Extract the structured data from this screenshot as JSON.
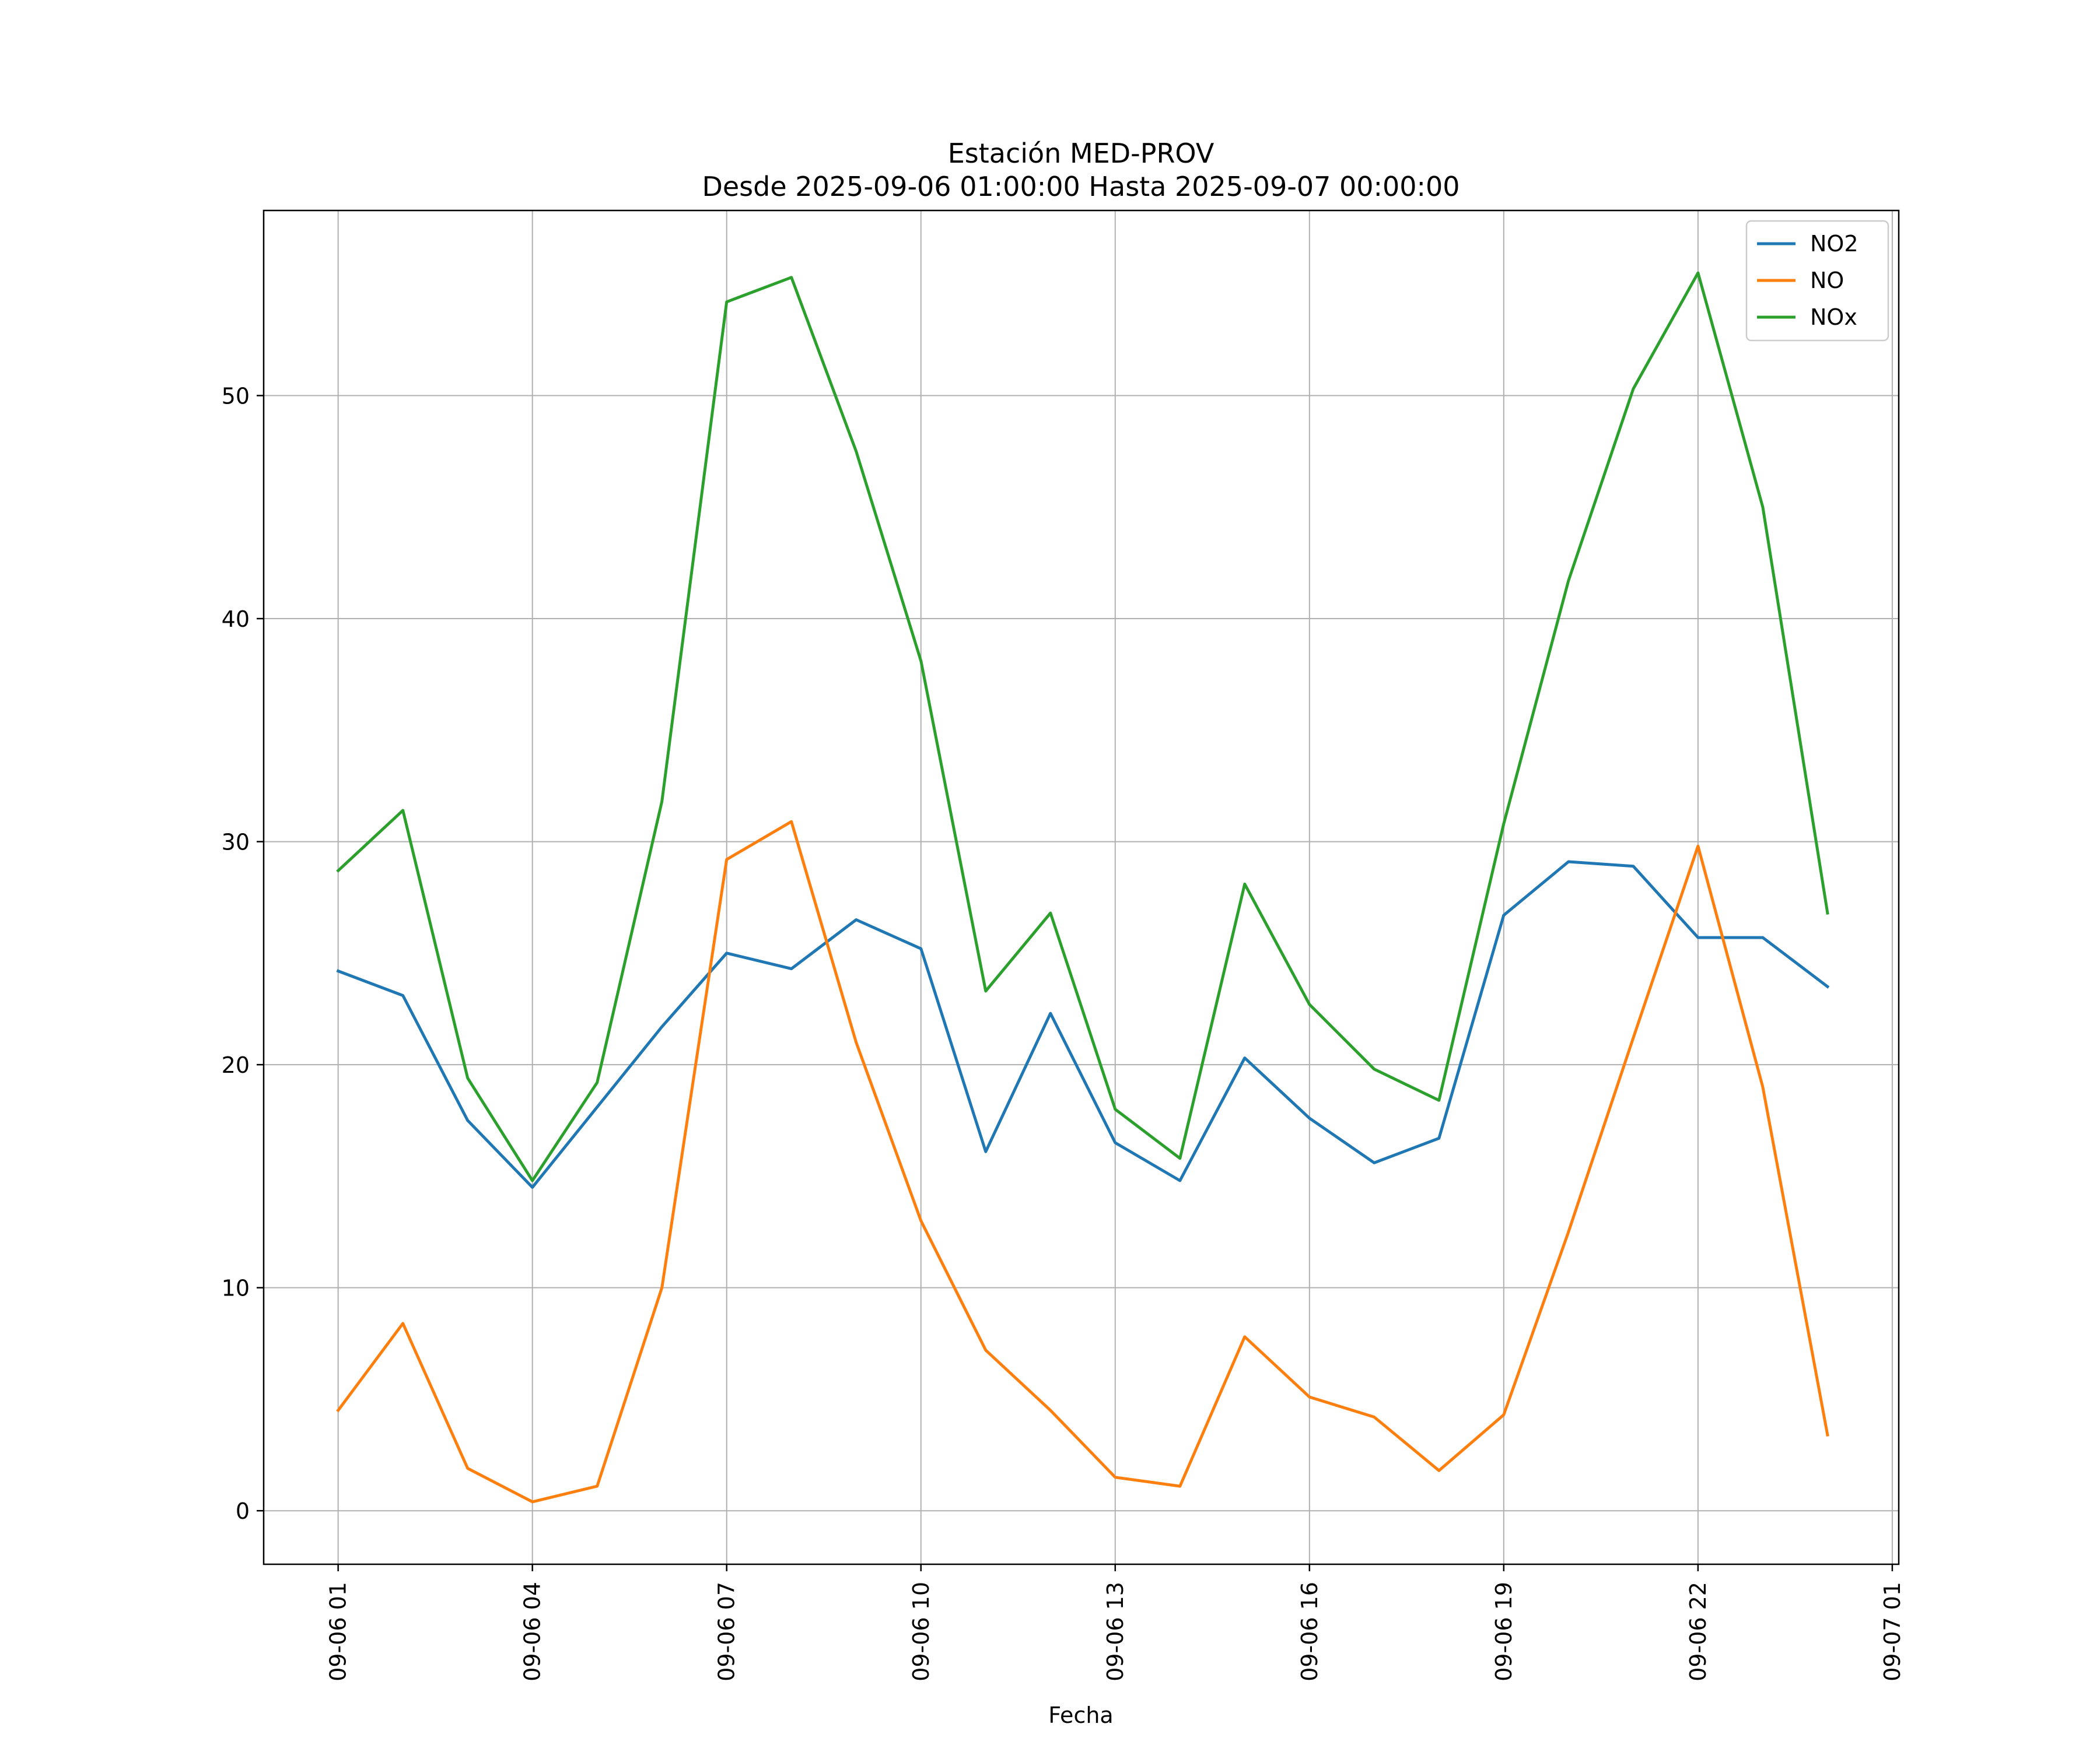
{
  "chart_data": {
    "type": "line",
    "title": "Estación MED-PROV",
    "subtitle": "Desde 2025-09-06 01:00:00 Hasta 2025-09-07 00:00:00",
    "xlabel": "Fecha",
    "ylabel": "",
    "x": [
      "09-06 01",
      "09-06 02",
      "09-06 03",
      "09-06 04",
      "09-06 05",
      "09-06 06",
      "09-06 07",
      "09-06 08",
      "09-06 09",
      "09-06 10",
      "09-06 11",
      "09-06 12",
      "09-06 13",
      "09-06 14",
      "09-06 15",
      "09-06 16",
      "09-06 17",
      "09-06 18",
      "09-06 19",
      "09-06 20",
      "09-06 21",
      "09-06 22",
      "09-06 23",
      "09-07 00"
    ],
    "x_hours": [
      1,
      2,
      3,
      4,
      5,
      6,
      7,
      8,
      9,
      10,
      11,
      12,
      13,
      14,
      15,
      16,
      17,
      18,
      19,
      20,
      21,
      22,
      23,
      24
    ],
    "xlim_hours": [
      -0.15,
      25.1
    ],
    "ylim": [
      -2.4,
      58.3
    ],
    "x_ticks": [
      {
        "label": "09-06 01",
        "hour": 1
      },
      {
        "label": "09-06 04",
        "hour": 4
      },
      {
        "label": "09-06 07",
        "hour": 7
      },
      {
        "label": "09-06 10",
        "hour": 10
      },
      {
        "label": "09-06 13",
        "hour": 13
      },
      {
        "label": "09-06 16",
        "hour": 16
      },
      {
        "label": "09-06 19",
        "hour": 19
      },
      {
        "label": "09-06 22",
        "hour": 22
      },
      {
        "label": "09-07 01",
        "hour": 25
      }
    ],
    "y_ticks": [
      0,
      10,
      20,
      30,
      40,
      50
    ],
    "grid": true,
    "legend_position": "top-right",
    "series": [
      {
        "name": "NO2",
        "color": "#1f77b4",
        "values": [
          24.2,
          23.1,
          17.5,
          14.5,
          18.1,
          21.7,
          25.0,
          24.3,
          26.5,
          25.2,
          16.1,
          22.3,
          16.5,
          14.8,
          20.3,
          17.6,
          15.6,
          16.7,
          26.7,
          29.1,
          28.9,
          25.7,
          25.7,
          23.5
        ]
      },
      {
        "name": "NO",
        "color": "#ff7f0e",
        "values": [
          4.5,
          8.4,
          1.9,
          0.4,
          1.1,
          10.0,
          29.2,
          30.9,
          21.0,
          13.0,
          7.2,
          4.5,
          1.5,
          1.1,
          7.8,
          5.1,
          4.2,
          1.8,
          4.3,
          12.5,
          21.2,
          29.8,
          19.0,
          3.4
        ]
      },
      {
        "name": "NOx",
        "color": "#2ca02c",
        "values": [
          28.7,
          31.4,
          19.4,
          14.8,
          19.2,
          31.8,
          54.2,
          55.3,
          47.5,
          38.1,
          23.3,
          26.8,
          18.0,
          15.8,
          28.1,
          22.7,
          19.8,
          18.4,
          30.8,
          41.7,
          50.3,
          55.5,
          45.0,
          26.8
        ]
      }
    ]
  }
}
